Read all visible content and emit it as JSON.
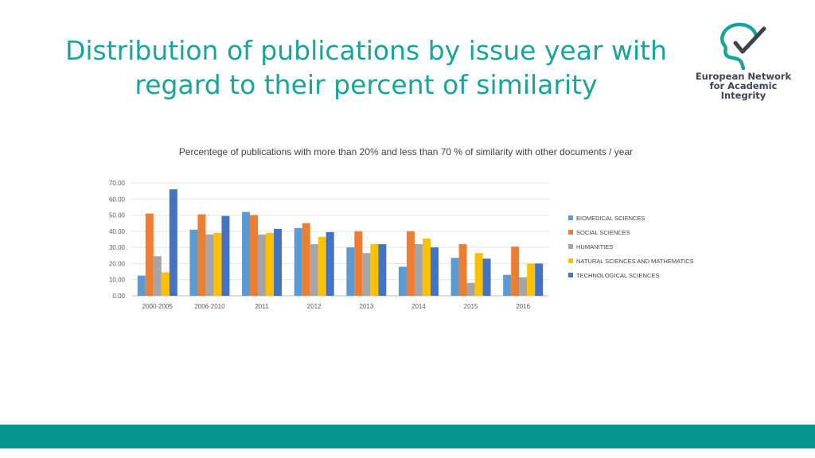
{
  "slide": {
    "title_line1": "Distribution of publications by issue year with",
    "title_line2": "regard to their percent of  similarity"
  },
  "logo": {
    "line1": "European Network",
    "line2": "for Academic",
    "line3": "Integrity",
    "colors": {
      "teal": "#17a59b",
      "dark": "#3d4450"
    }
  },
  "footer": {
    "color": "#05968c"
  },
  "chart_data": {
    "type": "bar",
    "title": "Percentege of publications with more than 20% and less than 70 % of similarity with other documents / year",
    "categories": [
      "2000-2005",
      "2006-2010",
      "2011",
      "2012",
      "2013",
      "2014",
      "2015",
      "2016"
    ],
    "series": [
      {
        "name": "BIOMEDICAL SCIENCES",
        "color": "#5b9bd5",
        "values": [
          12.5,
          41,
          52,
          42,
          30,
          18,
          23.5,
          13
        ]
      },
      {
        "name": "SOCIAL SCIENCES",
        "color": "#ed7d31",
        "values": [
          51,
          50.5,
          50,
          45,
          40,
          40,
          32,
          30.5
        ]
      },
      {
        "name": "HUMANITIES",
        "color": "#a5a5a5",
        "values": [
          24.5,
          38,
          38,
          32,
          26.5,
          32,
          8,
          11.5
        ]
      },
      {
        "name": "NATURAL SCIENCES AND MATHEMATICS",
        "color": "#ffc000",
        "values": [
          14.5,
          39,
          39,
          36.5,
          32,
          35.5,
          26.5,
          20
        ]
      },
      {
        "name": "TECHNOLOGICAL SCIENCES",
        "color": "#4472c4",
        "values": [
          66,
          49.5,
          41.5,
          39.5,
          32,
          30,
          23,
          20
        ]
      }
    ],
    "yticks": [
      "0.00",
      "10.00",
      "20.00",
      "30.00",
      "40.00",
      "50.00",
      "60.00",
      "70.00"
    ],
    "ylim": [
      0,
      70
    ],
    "grid": true,
    "legend_position": "right"
  }
}
